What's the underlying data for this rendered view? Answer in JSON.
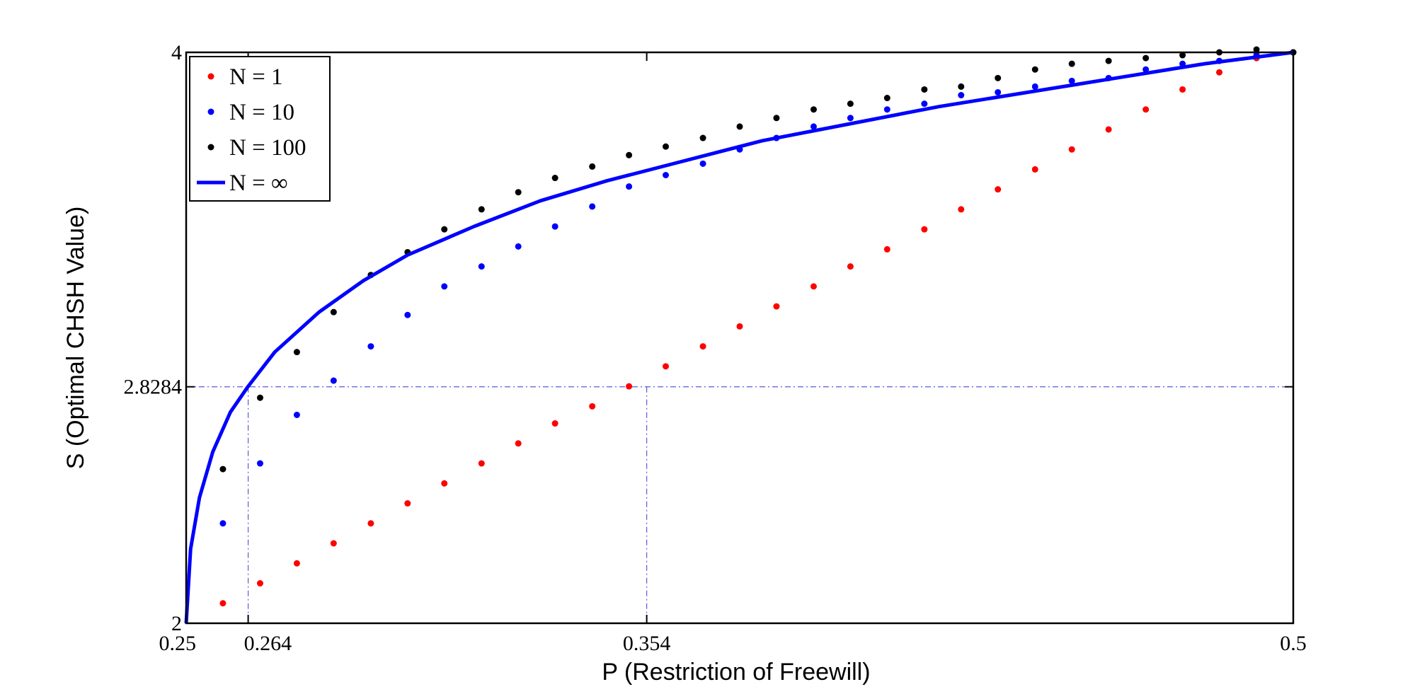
{
  "chart_data": {
    "type": "scatter",
    "title": "",
    "xlabel": "P (Restriction of Freewill)",
    "ylabel": "S (Optimal CHSH Value)",
    "xlim": [
      0.25,
      0.5
    ],
    "ylim": [
      2,
      4
    ],
    "xticks": [
      0.25,
      0.264,
      0.354,
      0.5
    ],
    "xtick_labels": [
      "0.25",
      "0.264",
      "0.354",
      "0.5"
    ],
    "yticks": [
      2,
      2.8284,
      4
    ],
    "ytick_labels": [
      "2",
      "2.8284",
      "4"
    ],
    "grid": false,
    "legend_position": "top-left",
    "reference_lines": {
      "horizontal_y": 2.8284,
      "vertical_x": [
        0.264,
        0.354
      ]
    },
    "x": [
      0.2583,
      0.2667,
      0.275,
      0.2833,
      0.2917,
      0.3,
      0.3083,
      0.3167,
      0.325,
      0.3333,
      0.3417,
      0.35,
      0.3583,
      0.3667,
      0.375,
      0.3833,
      0.3917,
      0.4,
      0.4083,
      0.4167,
      0.425,
      0.4333,
      0.4417,
      0.45,
      0.4583,
      0.4667,
      0.475,
      0.4833,
      0.4917,
      0.5
    ],
    "series": [
      {
        "name": "N = 1",
        "kind": "markers",
        "color": "#ff0000",
        "values": [
          2.07,
          2.14,
          2.21,
          2.28,
          2.35,
          2.42,
          2.49,
          2.56,
          2.63,
          2.7,
          2.76,
          2.83,
          2.9,
          2.97,
          3.04,
          3.11,
          3.18,
          3.25,
          3.31,
          3.38,
          3.45,
          3.52,
          3.59,
          3.66,
          3.73,
          3.8,
          3.87,
          3.93,
          3.98,
          4.0
        ]
      },
      {
        "name": "N = 10",
        "kind": "markers",
        "color": "#0000ff",
        "values": [
          2.35,
          2.56,
          2.73,
          2.85,
          2.97,
          3.08,
          3.18,
          3.25,
          3.32,
          3.39,
          3.46,
          3.53,
          3.57,
          3.61,
          3.66,
          3.7,
          3.74,
          3.77,
          3.8,
          3.82,
          3.85,
          3.86,
          3.88,
          3.9,
          3.91,
          3.94,
          3.96,
          3.97,
          3.99,
          4.0
        ]
      },
      {
        "name": "N = 100",
        "kind": "markers",
        "color": "#000000",
        "values": [
          2.54,
          2.79,
          2.95,
          3.09,
          3.22,
          3.3,
          3.38,
          3.45,
          3.51,
          3.56,
          3.6,
          3.64,
          3.67,
          3.7,
          3.74,
          3.77,
          3.8,
          3.82,
          3.84,
          3.87,
          3.88,
          3.91,
          3.94,
          3.96,
          3.97,
          3.98,
          3.99,
          4.0,
          4.01,
          4.0
        ]
      },
      {
        "name": "N = ∞",
        "kind": "line",
        "color": "#0000ff",
        "function": "S = 4 - 8*(2^(1/2)*(2-2^(1/2)))... sampled curve from (0.25, 2) to (0.5, 4)",
        "x": [
          0.25,
          0.251,
          0.253,
          0.256,
          0.26,
          0.264,
          0.27,
          0.28,
          0.29,
          0.3,
          0.315,
          0.33,
          0.345,
          0.36,
          0.38,
          0.4,
          0.42,
          0.44,
          0.46,
          0.48,
          0.5
        ],
        "values": [
          2.0,
          2.26,
          2.44,
          2.6,
          2.74,
          2.83,
          2.95,
          3.09,
          3.2,
          3.29,
          3.39,
          3.48,
          3.55,
          3.61,
          3.69,
          3.75,
          3.81,
          3.86,
          3.91,
          3.96,
          4.0
        ]
      }
    ]
  }
}
